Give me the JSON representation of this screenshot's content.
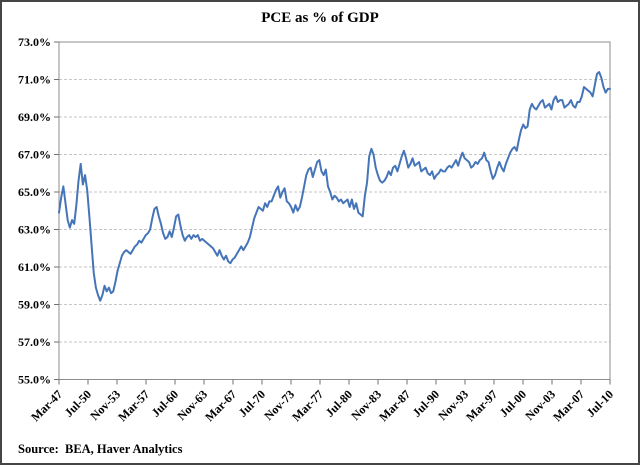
{
  "chart_data": {
    "type": "line",
    "title": "PCE as % of GDP",
    "source_note": "Source:  BEA, Haver Analytics",
    "xlabel": "",
    "ylabel": "",
    "ylim": [
      55,
      73
    ],
    "ytick_step": 2,
    "ytick_labels": [
      "73.0%",
      "71.0%",
      "69.0%",
      "67.0%",
      "65.0%",
      "63.0%",
      "61.0%",
      "59.0%",
      "57.0%",
      "55.0%"
    ],
    "xtick_labels": [
      "Mar-47",
      "Jul-50",
      "Nov-53",
      "Mar-57",
      "Jul-60",
      "Nov-63",
      "Mar-67",
      "Jul-70",
      "Nov-73",
      "Mar-77",
      "Jul-80",
      "Nov-83",
      "Mar-87",
      "Jul-90",
      "Nov-93",
      "Mar-97",
      "Jul-00",
      "Nov-03",
      "Mar-07",
      "Jul-10"
    ],
    "grid": "horizontal-dashed",
    "legend": "none",
    "frequency": "quarterly",
    "x_start": "Mar-47",
    "x_end": "Jul-10",
    "series": [
      {
        "name": "PCE as % of GDP",
        "values": [
          63.9,
          64.7,
          65.3,
          64.4,
          63.5,
          63.1,
          63.5,
          63.3,
          64.3,
          65.6,
          66.5,
          65.4,
          65.9,
          65.1,
          63.7,
          62.2,
          60.7,
          59.9,
          59.5,
          59.2,
          59.5,
          60.0,
          59.7,
          59.9,
          59.6,
          59.7,
          60.2,
          60.8,
          61.2,
          61.6,
          61.8,
          61.9,
          61.8,
          61.7,
          61.9,
          62.1,
          62.2,
          62.4,
          62.3,
          62.5,
          62.7,
          62.8,
          63.0,
          63.6,
          64.1,
          64.2,
          63.7,
          63.3,
          62.8,
          62.5,
          62.6,
          62.9,
          62.6,
          63.1,
          63.7,
          63.8,
          63.2,
          62.7,
          62.4,
          62.6,
          62.7,
          62.5,
          62.7,
          62.6,
          62.7,
          62.4,
          62.5,
          62.4,
          62.3,
          62.2,
          62.1,
          62.0,
          61.8,
          61.6,
          61.9,
          61.6,
          61.4,
          61.6,
          61.3,
          61.2,
          61.4,
          61.5,
          61.7,
          61.9,
          62.1,
          61.9,
          62.1,
          62.3,
          62.6,
          63.1,
          63.6,
          63.9,
          64.2,
          64.1,
          64.0,
          64.4,
          64.2,
          64.5,
          64.5,
          64.8,
          65.1,
          65.3,
          64.7,
          65.0,
          65.2,
          64.5,
          64.4,
          64.2,
          63.9,
          64.3,
          64.0,
          64.2,
          64.7,
          65.3,
          65.9,
          66.2,
          66.3,
          65.8,
          66.2,
          66.6,
          66.7,
          66.1,
          65.9,
          66.2,
          65.3,
          65.0,
          64.6,
          64.8,
          64.7,
          64.5,
          64.6,
          64.4,
          64.5,
          64.6,
          64.2,
          64.6,
          64.1,
          64.4,
          63.9,
          63.8,
          63.7,
          64.8,
          65.5,
          66.9,
          67.3,
          67.0,
          66.3,
          65.9,
          65.6,
          65.5,
          65.6,
          65.8,
          66.1,
          65.9,
          66.3,
          66.4,
          66.1,
          66.5,
          66.9,
          67.2,
          66.8,
          66.3,
          66.5,
          66.8,
          66.4,
          66.5,
          66.6,
          66.1,
          66.2,
          66.3,
          66.0,
          65.9,
          66.1,
          65.7,
          65.9,
          66.0,
          66.2,
          66.1,
          66.1,
          66.3,
          66.4,
          66.3,
          66.5,
          66.7,
          66.4,
          66.8,
          67.1,
          66.8,
          66.7,
          66.6,
          66.3,
          66.4,
          66.6,
          66.5,
          66.7,
          66.8,
          67.1,
          66.7,
          66.6,
          66.1,
          65.7,
          65.9,
          66.3,
          66.6,
          66.3,
          66.1,
          66.5,
          66.8,
          67.1,
          67.3,
          67.4,
          67.2,
          67.8,
          68.3,
          68.6,
          68.4,
          68.5,
          69.4,
          69.7,
          69.5,
          69.4,
          69.6,
          69.8,
          69.9,
          69.5,
          69.6,
          69.7,
          69.4,
          69.9,
          70.1,
          69.8,
          69.9,
          69.9,
          69.5,
          69.6,
          69.7,
          69.9,
          69.6,
          69.5,
          69.8,
          69.8,
          70.1,
          70.6,
          70.5,
          70.4,
          70.3,
          70.1,
          70.7,
          71.3,
          71.4,
          71.1,
          70.6,
          70.3,
          70.5,
          70.5
        ]
      }
    ],
    "colors": {
      "line": "#4575b8",
      "gridline": "#c6c6c6",
      "plot_border": "#8c8c8c",
      "tick": "#707070",
      "text": "#000000",
      "frame": "#454545",
      "background": "#ffffff"
    }
  }
}
